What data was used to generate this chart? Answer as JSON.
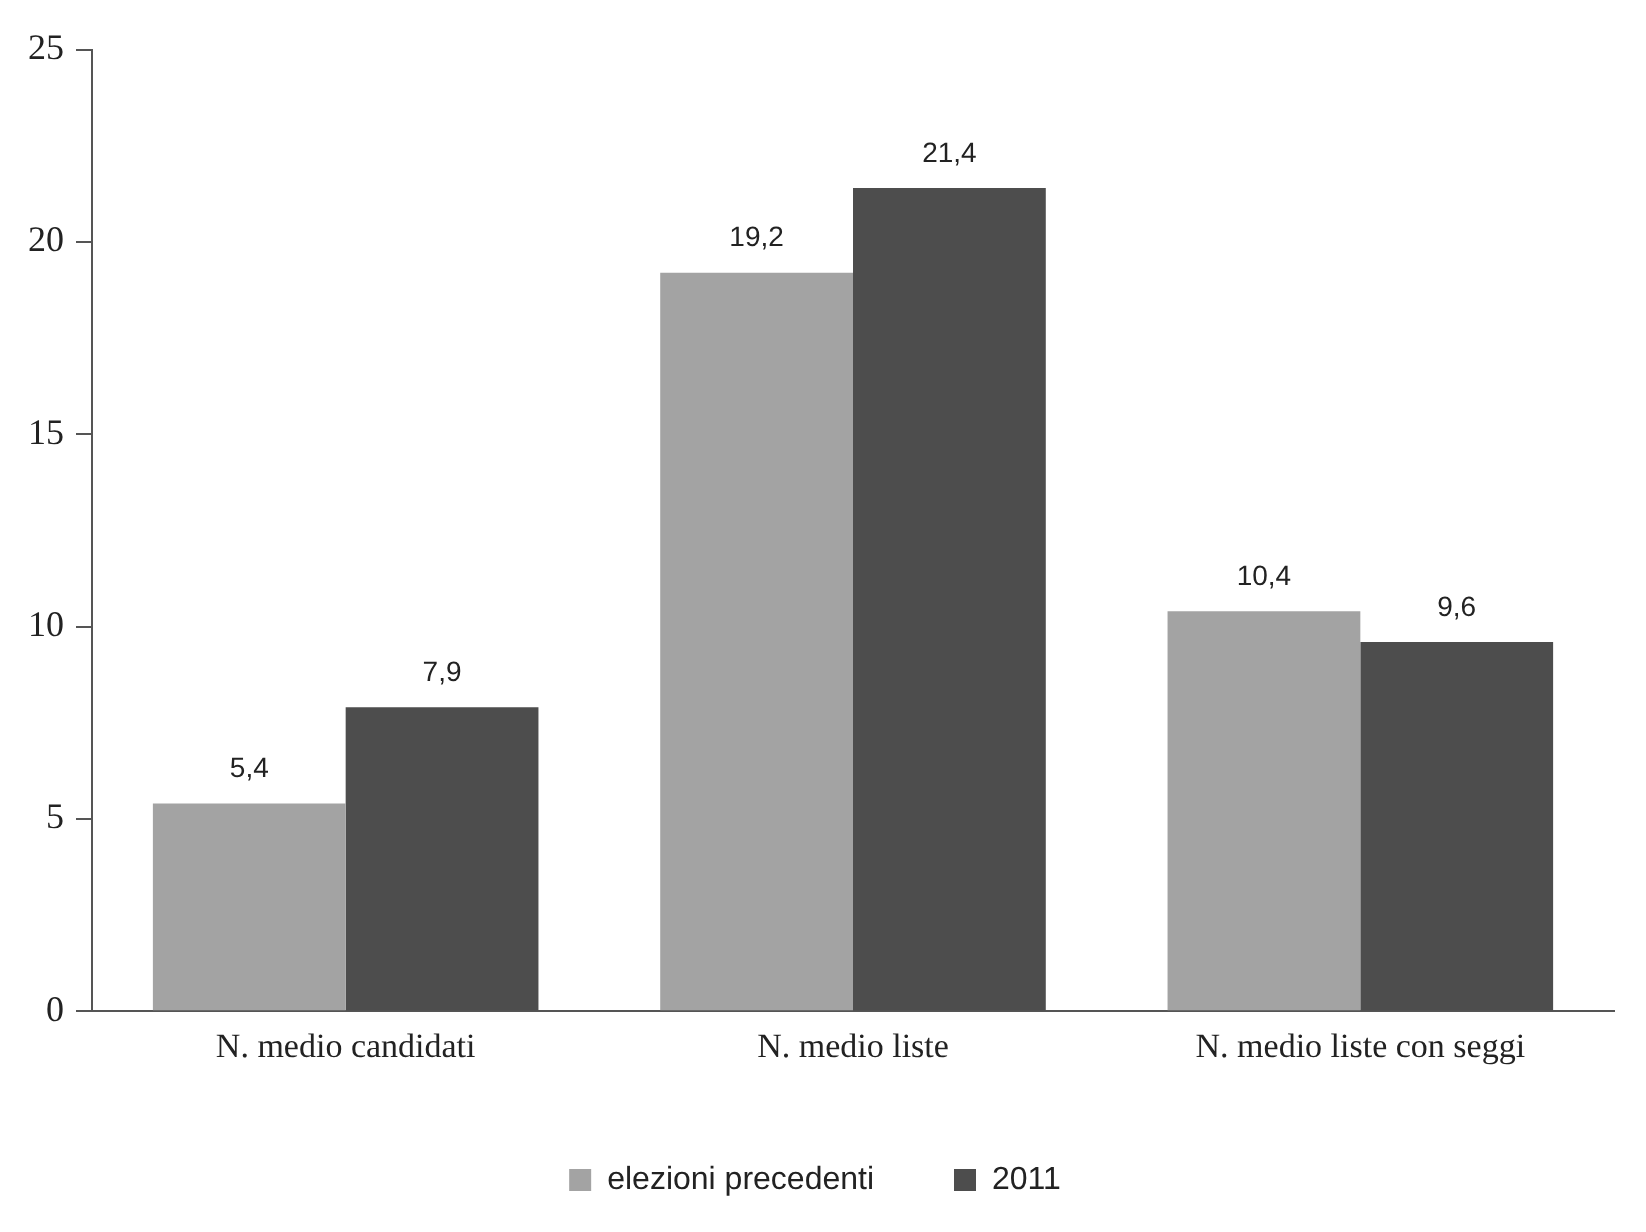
{
  "chart_data": {
    "type": "bar",
    "categories": [
      "N. medio candidati",
      "N. medio liste",
      "N. medio liste con seggi"
    ],
    "series": [
      {
        "name": "elezioni precedenti",
        "color": "#a3a3a3",
        "values": [
          5.4,
          19.2,
          10.4
        ],
        "value_labels": [
          "5,4",
          "19,2",
          "10,4"
        ]
      },
      {
        "name": "2011",
        "color": "#4d4d4d",
        "values": [
          7.9,
          21.4,
          9.6
        ],
        "value_labels": [
          "7,9",
          "21,4",
          "9,6"
        ]
      }
    ],
    "ylim": [
      0,
      25
    ],
    "yticks": [
      0,
      5,
      10,
      15,
      20,
      25
    ],
    "grid": false,
    "legend": "bottom"
  }
}
